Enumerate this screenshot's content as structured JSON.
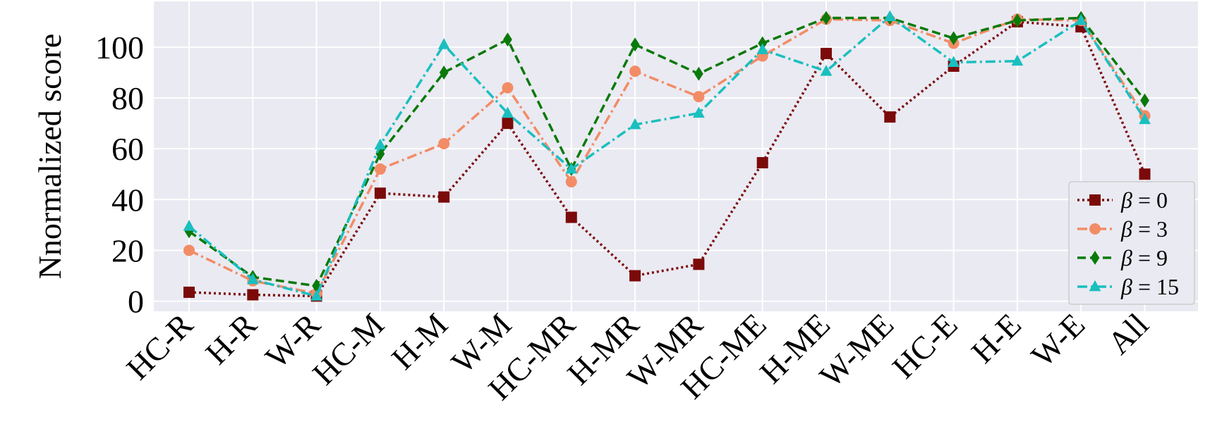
{
  "chart_data": {
    "type": "line",
    "title": "",
    "xlabel": "",
    "ylabel": "Nnormalized score",
    "categories": [
      "HC-R",
      "H-R",
      "W-R",
      "HC-M",
      "H-M",
      "W-M",
      "HC-MR",
      "H-MR",
      "W-MR",
      "HC-ME",
      "H-ME",
      "W-ME",
      "HC-E",
      "H-E",
      "W-E",
      "All"
    ],
    "ylim": [
      -4,
      118
    ],
    "yticks": [
      0,
      20,
      40,
      60,
      80,
      100
    ],
    "grid": true,
    "background": "#EAEAF2",
    "legend_position": "lower-right",
    "series": [
      {
        "name": "β = 0",
        "label_prefix": "β",
        "label_value": "0",
        "color": "#7B0A0A",
        "marker": "square",
        "dash": "dotted",
        "values": [
          3.5,
          2.5,
          2,
          42.5,
          41,
          70,
          33,
          10,
          14.5,
          54.5,
          97.5,
          72.5,
          92.5,
          110,
          108,
          50
        ]
      },
      {
        "name": "β = 3",
        "label_prefix": "β",
        "label_value": "3",
        "color": "#F28C66",
        "marker": "circle",
        "dash": "dashdot",
        "values": [
          20,
          8,
          3,
          52,
          62,
          84,
          47,
          90.5,
          80.5,
          96.5,
          111,
          110.5,
          101.5,
          111,
          110.5,
          73
        ]
      },
      {
        "name": "β = 9",
        "label_prefix": "β",
        "label_value": "9",
        "color": "#0A7A0A",
        "marker": "diamond",
        "dash": "dashed",
        "values": [
          27.5,
          9.5,
          6,
          58,
          90,
          103,
          52,
          101,
          89.5,
          101.5,
          111.5,
          111.5,
          103.5,
          110.5,
          111.5,
          79
        ]
      },
      {
        "name": "β = 15",
        "label_prefix": "β",
        "label_value": "15",
        "color": "#1ABFBF",
        "marker": "triangle",
        "dash": "dashdot",
        "values": [
          29.5,
          8.5,
          2,
          61.5,
          101,
          74,
          52,
          69.5,
          74,
          99,
          90.5,
          112,
          94,
          94.5,
          110.5,
          71.5
        ]
      }
    ]
  }
}
